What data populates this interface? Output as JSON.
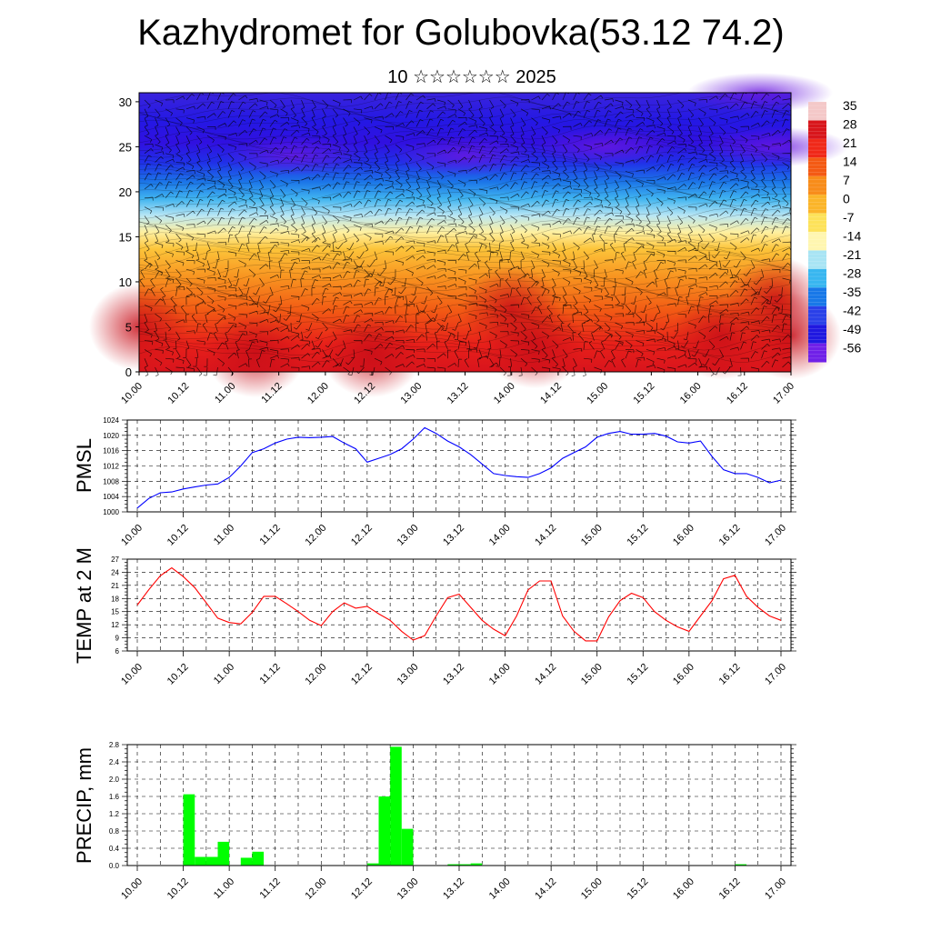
{
  "title": "Kazhydromet for Golubovka(53.12 74.2)",
  "subtitle": "10 ☆☆☆☆☆☆ 2025",
  "time_labels": [
    "10.00",
    "10.12",
    "11.00",
    "11.12",
    "12.00",
    "12.12",
    "13.00",
    "13.12",
    "14.00",
    "14.12",
    "15.00",
    "15.12",
    "16.00",
    "16.12",
    "17.00"
  ],
  "chart_data": [
    {
      "type": "heatmap",
      "description_role": "vertical cross-section temperature with wind barbs",
      "y_ticks": [
        0,
        5,
        10,
        15,
        20,
        25,
        30
      ],
      "ylim": [
        0,
        31
      ],
      "colorbar_labels": [
        "35",
        "28",
        "21",
        "14",
        "7",
        "0",
        "-7",
        "-14",
        "-21",
        "-28",
        "-35",
        "-42",
        "-49",
        "-56"
      ],
      "colorbar_colors": [
        "#f4c8c8",
        "#d8161c",
        "#f02818",
        "#f45a14",
        "#f88c1a",
        "#fbb52a",
        "#fde25a",
        "#fff6b0",
        "#a8e4f4",
        "#38b6f0",
        "#1878e8",
        "#2a40e8",
        "#2018e0",
        "#7020e8"
      ]
    },
    {
      "type": "line",
      "ylabel": "PMSL",
      "color": "#0000ff",
      "ylim": [
        1000,
        1024
      ],
      "y_ticks": [
        1000,
        1004,
        1008,
        1012,
        1016,
        1020,
        1024
      ],
      "x": [
        0,
        3,
        6,
        9,
        12,
        15,
        18,
        21,
        24,
        27,
        30,
        33,
        36,
        39,
        42,
        45,
        48,
        51,
        54,
        57,
        60,
        63,
        66,
        69,
        72,
        75,
        78,
        81,
        84,
        87,
        90,
        93,
        96,
        99,
        102,
        105,
        108,
        111,
        114,
        117,
        120,
        123,
        126,
        129,
        132,
        135,
        138,
        141,
        144,
        147,
        150,
        153,
        156,
        159,
        162,
        165,
        168
      ],
      "values": [
        1001,
        1003.5,
        1005,
        1005.2,
        1006,
        1006.5,
        1007,
        1007.3,
        1009,
        1012,
        1015.5,
        1016.5,
        1018,
        1019,
        1019.5,
        1019.4,
        1019.5,
        1019.7,
        1018,
        1016.5,
        1013,
        1014,
        1015,
        1016.5,
        1019,
        1022,
        1020.5,
        1018.5,
        1017,
        1015,
        1012.5,
        1010,
        1009.5,
        1009.2,
        1009,
        1010,
        1011.5,
        1014,
        1015.5,
        1017,
        1019.5,
        1020.5,
        1021,
        1020.3,
        1020.3,
        1020.5,
        1019.8,
        1018.3,
        1018,
        1018.5,
        1014.5,
        1011,
        1010,
        1010,
        1009,
        1007.6,
        1008.3
      ]
    },
    {
      "type": "line",
      "ylabel": "TEMP at 2 M",
      "color": "#ff0000",
      "ylim": [
        6,
        27
      ],
      "y_ticks": [
        6,
        9,
        12,
        15,
        18,
        21,
        24,
        27
      ],
      "x": [
        0,
        3,
        6,
        9,
        12,
        15,
        18,
        21,
        24,
        27,
        30,
        33,
        36,
        39,
        42,
        45,
        48,
        51,
        54,
        57,
        60,
        63,
        66,
        69,
        72,
        75,
        78,
        81,
        84,
        87,
        90,
        93,
        96,
        99,
        102,
        105,
        108,
        111,
        114,
        117,
        120,
        123,
        126,
        129,
        132,
        135,
        138,
        141,
        144,
        147,
        150,
        153,
        156,
        159,
        162,
        165,
        168
      ],
      "values": [
        16.5,
        20,
        23.2,
        25,
        23,
        20.5,
        17,
        13.5,
        12.5,
        12.2,
        14.8,
        18.5,
        18.5,
        16.8,
        15,
        13,
        11.8,
        15,
        17,
        15.8,
        16.2,
        14.5,
        13,
        10.5,
        8.5,
        9.5,
        14,
        18.2,
        19,
        16,
        13,
        11,
        9.5,
        14,
        20,
        22,
        22,
        14,
        10.5,
        8.3,
        8.3,
        13.8,
        17.5,
        19.2,
        18.2,
        15,
        13,
        11.5,
        10.5,
        14,
        17.5,
        22.5,
        23.3,
        18.5,
        16,
        14,
        13
      ]
    },
    {
      "type": "bar",
      "ylabel": "PRECIP, mm",
      "color": "#00ff00",
      "ylim": [
        0,
        2.8
      ],
      "y_ticks": [
        "0.0",
        "0.4",
        "0.8",
        "1.2",
        "1.6",
        "2.0",
        "2.4",
        "2.8"
      ],
      "x": [
        0,
        3,
        6,
        9,
        12,
        15,
        18,
        21,
        24,
        27,
        30,
        33,
        36,
        39,
        42,
        45,
        48,
        51,
        54,
        57,
        60,
        63,
        66,
        69,
        72,
        75,
        78,
        81,
        84,
        87,
        90,
        93,
        96,
        99,
        102,
        105,
        108,
        111,
        114,
        117,
        120,
        123,
        126,
        129,
        132,
        135,
        138,
        141,
        144,
        147,
        150,
        153,
        156,
        159,
        162,
        165
      ],
      "values": [
        0,
        0,
        0,
        0,
        1.65,
        0.2,
        0.2,
        0.55,
        0,
        0.18,
        0.32,
        0,
        0,
        0,
        0,
        0,
        0,
        0,
        0,
        0,
        0.05,
        1.6,
        2.75,
        0.85,
        0,
        0,
        0,
        0.03,
        0.03,
        0.05,
        0,
        0,
        0,
        0,
        0,
        0,
        0,
        0,
        0,
        0,
        0,
        0,
        0,
        0,
        0,
        0,
        0,
        0,
        0,
        0,
        0,
        0,
        0.03,
        0,
        0,
        0
      ]
    }
  ]
}
